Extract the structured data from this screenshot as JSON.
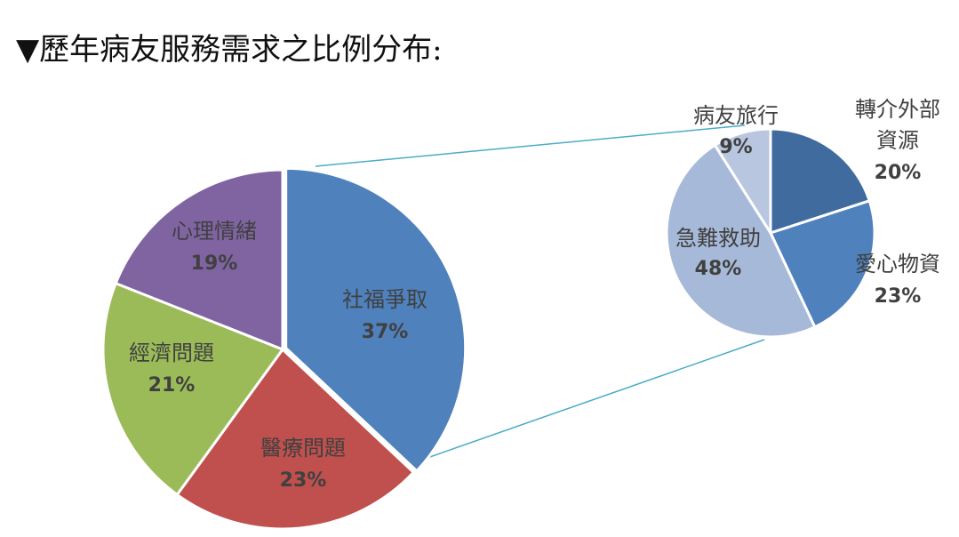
{
  "heading": "▼歷年病友服務需求之比例分布:",
  "chart_data": {
    "type": "pie",
    "main": {
      "slices": [
        {
          "label": "社福爭取",
          "value": 37,
          "pct": "37%",
          "color": "#4f81bd",
          "exploded": true
        },
        {
          "label": "醫療問題",
          "value": 23,
          "pct": "23%",
          "color": "#c0504d"
        },
        {
          "label": "經濟問題",
          "value": 21,
          "pct": "21%",
          "color": "#9bbb59"
        },
        {
          "label": "心理情緒",
          "value": 19,
          "pct": "19%",
          "color": "#8064a2"
        }
      ]
    },
    "breakdown_of": "社福爭取",
    "secondary": {
      "slices": [
        {
          "label": "轉介外部資源",
          "value": 20,
          "pct": "20%",
          "color": "#3f6b9e"
        },
        {
          "label": "愛心物資",
          "value": 23,
          "pct": "23%",
          "color": "#4f81bd"
        },
        {
          "label": "急難救助",
          "value": 48,
          "pct": "48%",
          "color": "#a7b9d9"
        },
        {
          "label": "病友旅行",
          "value": 9,
          "pct": "9%",
          "color": "#b9c6e0"
        }
      ]
    },
    "connector_color": "#4bacc6"
  }
}
